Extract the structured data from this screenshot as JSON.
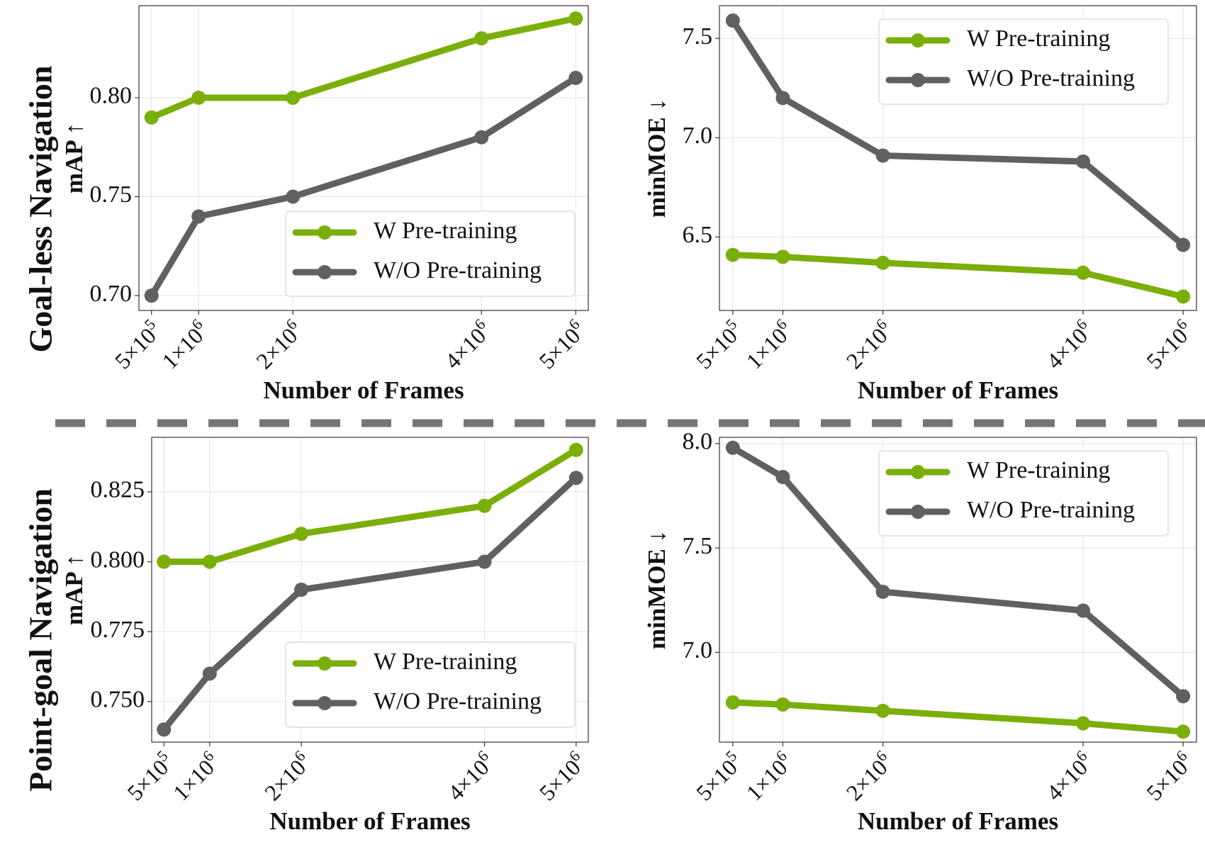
{
  "row_labels": [
    "Goal-less Navigation",
    "Point-goal Navigation"
  ],
  "colors": {
    "w_pretraining": "#7aaf0a",
    "wo_pretraining": "#606060",
    "divider": "#757575"
  },
  "chart_data": [
    {
      "type": "line",
      "row": "Goal-less Navigation",
      "xlabel": "Number of Frames",
      "ylabel": "mAP ↑",
      "x": [
        500000,
        1000000,
        2000000,
        4000000,
        5000000
      ],
      "x_ticks": [
        {
          "m": "5",
          "e": "5"
        },
        {
          "m": "1",
          "e": "6"
        },
        {
          "m": "2",
          "e": "6"
        },
        {
          "m": "4",
          "e": "6"
        },
        {
          "m": "5",
          "e": "6"
        }
      ],
      "y_ticks": [
        "0.70",
        "0.75",
        "0.80"
      ],
      "ylim": [
        0.6925,
        0.8465
      ],
      "grid": true,
      "legend_position": "lower-right",
      "series": [
        {
          "name": "W Pre-training",
          "values": [
            0.79,
            0.8,
            0.8,
            0.83,
            0.84
          ]
        },
        {
          "name": "W/O Pre-training",
          "values": [
            0.7,
            0.74,
            0.75,
            0.78,
            0.81
          ]
        }
      ]
    },
    {
      "type": "line",
      "row": "Goal-less Navigation",
      "xlabel": "Number of Frames",
      "ylabel": "minMOE ↓",
      "x": [
        500000,
        1000000,
        2000000,
        4000000,
        5000000
      ],
      "x_ticks": [
        {
          "m": "5",
          "e": "5"
        },
        {
          "m": "1",
          "e": "6"
        },
        {
          "m": "2",
          "e": "6"
        },
        {
          "m": "4",
          "e": "6"
        },
        {
          "m": "5",
          "e": "6"
        }
      ],
      "y_ticks": [
        "6.5",
        "7.0",
        "7.5"
      ],
      "ylim": [
        6.13,
        7.665
      ],
      "grid": true,
      "legend_position": "upper-right",
      "series": [
        {
          "name": "W Pre-training",
          "values": [
            6.41,
            6.4,
            6.37,
            6.32,
            6.2
          ]
        },
        {
          "name": "W/O Pre-training",
          "values": [
            7.59,
            7.2,
            6.91,
            6.88,
            6.46
          ]
        }
      ]
    },
    {
      "type": "line",
      "row": "Point-goal Navigation",
      "xlabel": "Number of Frames",
      "ylabel": "mAP ↑",
      "x": [
        500000,
        1000000,
        2000000,
        4000000,
        5000000
      ],
      "x_ticks": [
        {
          "m": "5",
          "e": "5"
        },
        {
          "m": "1",
          "e": "6"
        },
        {
          "m": "2",
          "e": "6"
        },
        {
          "m": "4",
          "e": "6"
        },
        {
          "m": "5",
          "e": "6"
        }
      ],
      "y_ticks": [
        "0.750",
        "0.775",
        "0.800",
        "0.825"
      ],
      "ylim": [
        0.7355,
        0.8445
      ],
      "grid": true,
      "legend_position": "lower-right",
      "series": [
        {
          "name": "W Pre-training",
          "values": [
            0.8,
            0.8,
            0.81,
            0.82,
            0.84
          ]
        },
        {
          "name": "W/O Pre-training",
          "values": [
            0.74,
            0.76,
            0.79,
            0.8,
            0.83
          ]
        }
      ]
    },
    {
      "type": "line",
      "row": "Point-goal Navigation",
      "xlabel": "Number of Frames",
      "ylabel": "minMOE ↓",
      "x": [
        500000,
        1000000,
        2000000,
        4000000,
        5000000
      ],
      "x_ticks": [
        {
          "m": "5",
          "e": "5"
        },
        {
          "m": "1",
          "e": "6"
        },
        {
          "m": "2",
          "e": "6"
        },
        {
          "m": "4",
          "e": "6"
        },
        {
          "m": "5",
          "e": "6"
        }
      ],
      "y_ticks": [
        "7.0",
        "7.5",
        "8.0"
      ],
      "ylim": [
        6.57,
        8.03
      ],
      "grid": true,
      "legend_position": "upper-right",
      "series": [
        {
          "name": "W Pre-training",
          "values": [
            6.76,
            6.75,
            6.72,
            6.66,
            6.62
          ]
        },
        {
          "name": "W/O Pre-training",
          "values": [
            7.98,
            7.84,
            7.29,
            7.2,
            6.79
          ]
        }
      ]
    }
  ]
}
